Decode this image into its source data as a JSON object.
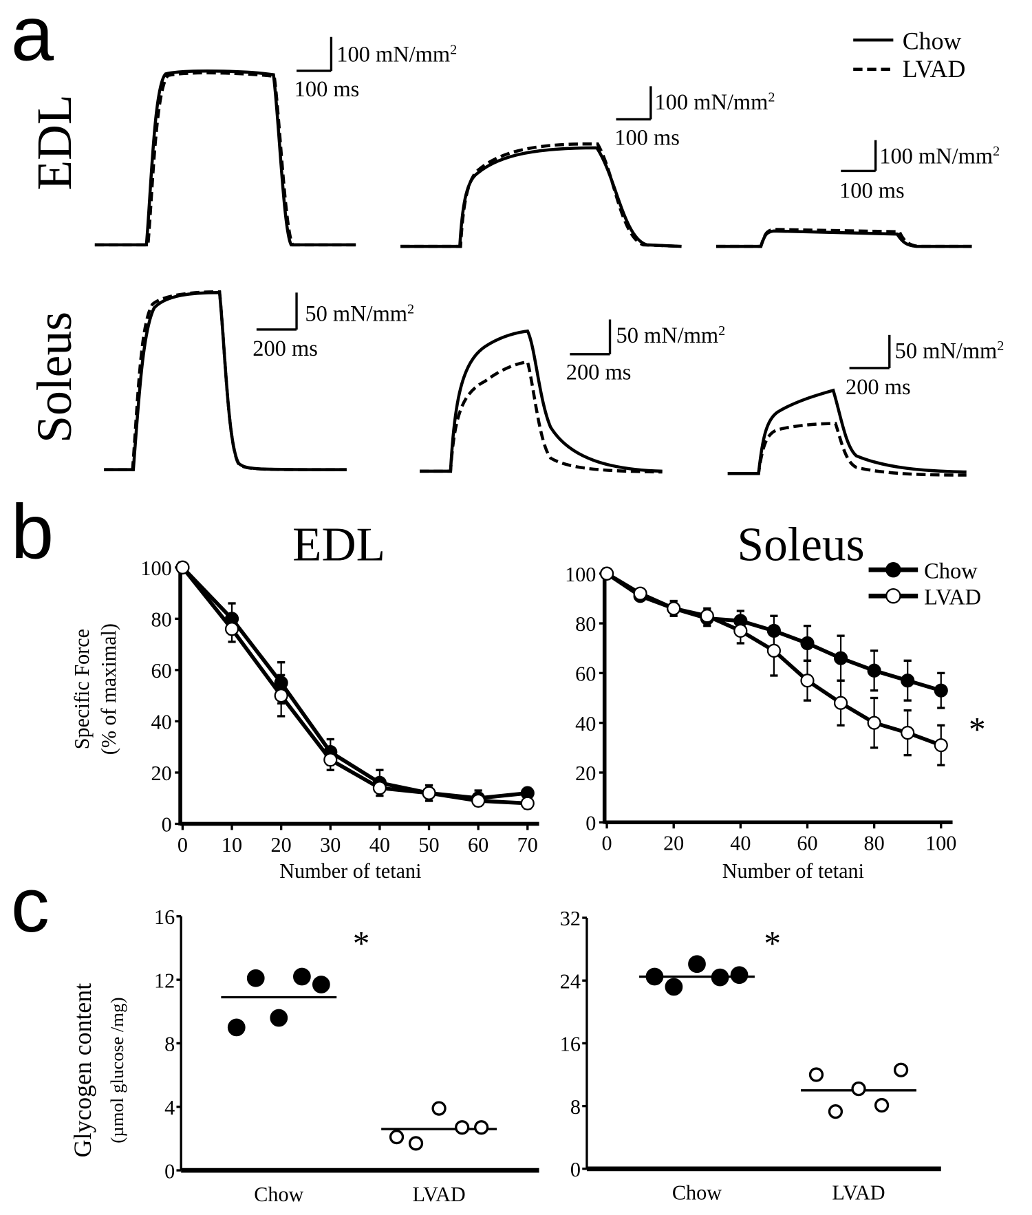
{
  "panel_labels": {
    "a": "a",
    "b": "b",
    "c": "c"
  },
  "legend": {
    "chow": "Chow",
    "lvad": "LVAD"
  },
  "colors": {
    "ink": "#000000",
    "open_marker": "#ffffff"
  },
  "chart_data": [
    {
      "type": "line",
      "panel": "a",
      "row_label": "EDL",
      "description_series": [
        "Chow",
        "LVAD"
      ],
      "line_styles": {
        "Chow": "solid",
        "LVAD": "dashed"
      },
      "scale_bars": [
        {
          "force": "100 mN/mm²",
          "time": "100 ms"
        },
        {
          "force": "100 mN/mm²",
          "time": "100 ms"
        },
        {
          "force": "100 mN/mm²",
          "time": "100 ms"
        }
      ]
    },
    {
      "type": "line",
      "panel": "a",
      "row_label": "Soleus",
      "line_styles": {
        "Chow": "solid",
        "LVAD": "dashed"
      },
      "scale_bars": [
        {
          "force": "50 mN/mm²",
          "time": "200 ms"
        },
        {
          "force": "50 mN/mm²",
          "time": "200 ms"
        },
        {
          "force": "50 mN/mm²",
          "time": "200 ms"
        }
      ]
    },
    {
      "type": "line",
      "panel": "b",
      "title": "EDL",
      "xlabel": "Number of tetani",
      "ylabel": "Specific Force",
      "ylabel2": "(% of maximal)",
      "xlim": [
        0,
        70
      ],
      "ylim": [
        0,
        100
      ],
      "xticks": [
        "0",
        "10",
        "20",
        "30",
        "40",
        "50",
        "60",
        "70"
      ],
      "yticks": [
        "0",
        "20",
        "40",
        "60",
        "80",
        "100"
      ],
      "x": [
        0,
        10,
        20,
        30,
        40,
        50,
        60,
        70
      ],
      "series": [
        {
          "name": "Chow",
          "marker": "filled",
          "values": [
            100,
            80,
            55,
            28,
            16,
            12,
            10,
            12
          ],
          "err": [
            0,
            6,
            8,
            5,
            5,
            3,
            3,
            2
          ]
        },
        {
          "name": "LVAD",
          "marker": "open",
          "values": [
            100,
            76,
            50,
            25,
            14,
            12,
            9,
            8
          ],
          "err": [
            0,
            5,
            8,
            4,
            3,
            3,
            2,
            2
          ]
        }
      ]
    },
    {
      "type": "line",
      "panel": "b",
      "title": "Soleus",
      "xlabel": "Number of tetani",
      "legend": "top-right",
      "annotation": "*",
      "xlim": [
        0,
        100
      ],
      "ylim": [
        0,
        100
      ],
      "xticks": [
        "0",
        "20",
        "40",
        "60",
        "80",
        "100"
      ],
      "yticks": [
        "0",
        "20",
        "40",
        "60",
        "80",
        "100"
      ],
      "x": [
        0,
        10,
        20,
        30,
        40,
        50,
        60,
        70,
        80,
        90,
        100
      ],
      "series": [
        {
          "name": "Chow",
          "marker": "filled",
          "values": [
            100,
            91,
            86,
            82,
            81,
            77,
            72,
            66,
            61,
            57,
            53
          ],
          "err": [
            0,
            1,
            3,
            3,
            4,
            6,
            7,
            9,
            8,
            8,
            7
          ]
        },
        {
          "name": "LVAD",
          "marker": "open",
          "values": [
            100,
            92,
            86,
            83,
            77,
            69,
            57,
            48,
            40,
            36,
            31
          ],
          "err": [
            0,
            1,
            2,
            3,
            5,
            10,
            8,
            9,
            10,
            9,
            8
          ]
        }
      ]
    },
    {
      "type": "scatter",
      "panel": "c",
      "ylabel": "Glycogen content",
      "ylabel2": "(µmol glucose /mg)",
      "annotation": "*",
      "ylim": [
        0,
        16
      ],
      "yticks": [
        "0",
        "4",
        "8",
        "12",
        "16"
      ],
      "categories": [
        "Chow",
        "LVAD"
      ],
      "groups": [
        {
          "name": "Chow",
          "marker": "filled",
          "values": [
            9.0,
            12.1,
            9.6,
            12.2,
            11.7
          ],
          "mean": 10.9
        },
        {
          "name": "LVAD",
          "marker": "open",
          "values": [
            2.1,
            1.7,
            3.9,
            2.7,
            2.7
          ],
          "mean": 2.6
        }
      ]
    },
    {
      "type": "scatter",
      "panel": "c",
      "annotation": "*",
      "ylim": [
        0,
        32
      ],
      "yticks": [
        "0",
        "8",
        "16",
        "24",
        "32"
      ],
      "categories": [
        "Chow",
        "LVAD"
      ],
      "groups": [
        {
          "name": "Chow",
          "marker": "filled",
          "values": [
            24.5,
            23.2,
            26.1,
            24.4,
            24.7
          ],
          "mean": 24.5
        },
        {
          "name": "LVAD",
          "marker": "open",
          "values": [
            12.0,
            7.3,
            10.2,
            8.1,
            12.6
          ],
          "mean": 10.0
        }
      ]
    }
  ]
}
